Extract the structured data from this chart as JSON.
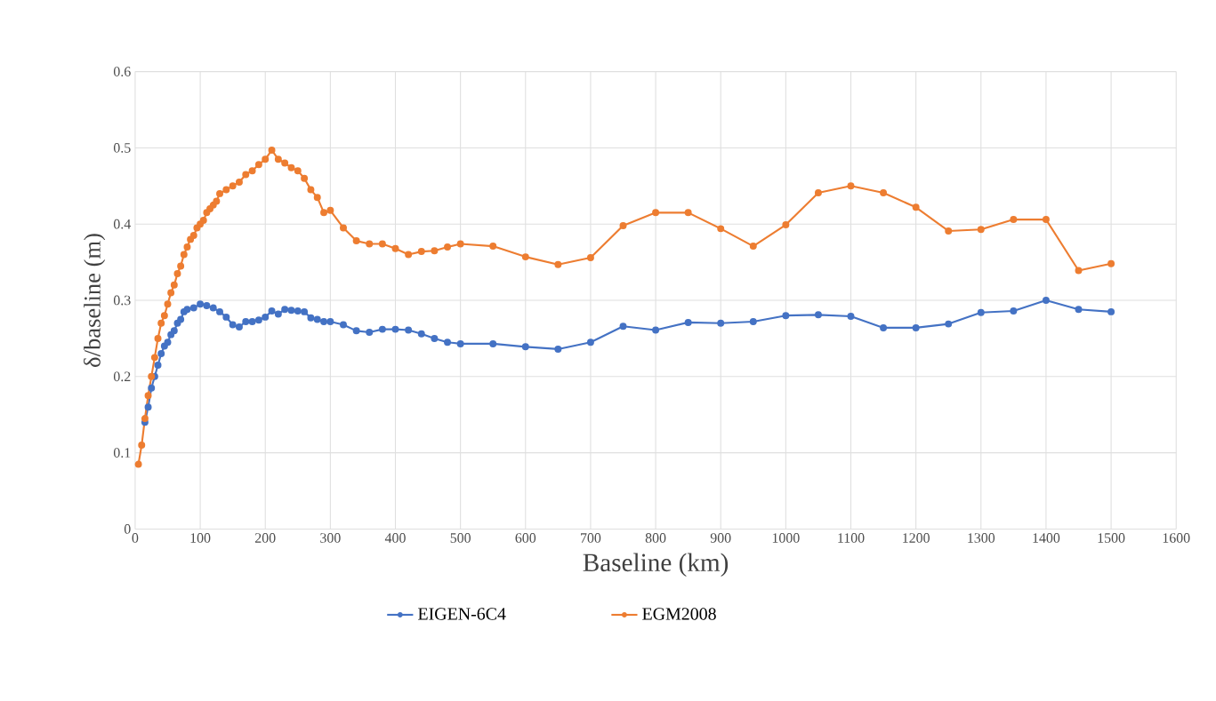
{
  "chart_data": {
    "type": "line",
    "xlabel": "Baseline (km)",
    "ylabel": "δ/baseline (m)",
    "xlim": [
      0,
      1600
    ],
    "xticks": [
      0,
      100,
      200,
      300,
      400,
      500,
      600,
      700,
      800,
      900,
      1000,
      1100,
      1200,
      1300,
      1400,
      1500,
      1600
    ],
    "ylim": [
      0,
      0.6
    ],
    "yticks": [
      0,
      0.1,
      0.2,
      0.3,
      0.4,
      0.5,
      0.6
    ],
    "grid": true,
    "legend": "bottom",
    "marker": "circle",
    "line_style": "solid",
    "x": [
      5,
      10,
      15,
      20,
      25,
      30,
      35,
      40,
      45,
      50,
      55,
      60,
      65,
      70,
      75,
      80,
      85,
      90,
      95,
      100,
      105,
      110,
      115,
      120,
      125,
      130,
      140,
      150,
      160,
      170,
      180,
      190,
      200,
      210,
      220,
      230,
      240,
      250,
      260,
      270,
      280,
      290,
      300,
      320,
      340,
      360,
      380,
      400,
      420,
      440,
      460,
      480,
      500,
      550,
      600,
      650,
      700,
      750,
      800,
      850,
      900,
      950,
      1000,
      1050,
      1100,
      1150,
      1200,
      1250,
      1300,
      1350,
      1400,
      1450,
      1500
    ],
    "series": [
      {
        "name": "EIGEN-6C4",
        "color": "#4472c4",
        "x": [
          15,
          20,
          25,
          30,
          35,
          40,
          45,
          50,
          55,
          60,
          65,
          70,
          75,
          80,
          90,
          100,
          110,
          120,
          130,
          140,
          150,
          160,
          170,
          180,
          190,
          200,
          210,
          220,
          230,
          240,
          250,
          260,
          270,
          280,
          290,
          300,
          320,
          340,
          360,
          380,
          400,
          420,
          440,
          460,
          480,
          500,
          550,
          600,
          650,
          700,
          750,
          800,
          850,
          900,
          950,
          1000,
          1050,
          1100,
          1150,
          1200,
          1250,
          1300,
          1350,
          1400,
          1450,
          1500
        ],
        "values": [
          0.14,
          0.16,
          0.185,
          0.2,
          0.215,
          0.23,
          0.24,
          0.245,
          0.255,
          0.26,
          0.27,
          0.275,
          0.285,
          0.288,
          0.29,
          0.295,
          0.293,
          0.29,
          0.285,
          0.278,
          0.268,
          0.265,
          0.272,
          0.272,
          0.274,
          0.278,
          0.286,
          0.282,
          0.288,
          0.287,
          0.286,
          0.285,
          0.277,
          0.275,
          0.272,
          0.272,
          0.268,
          0.26,
          0.258,
          0.262,
          0.262,
          0.261,
          0.256,
          0.25,
          0.245,
          0.243,
          0.243,
          0.239,
          0.236,
          0.245,
          0.266,
          0.261,
          0.271,
          0.27,
          0.272,
          0.28,
          0.281,
          0.279,
          0.264,
          0.264,
          0.269,
          0.284,
          0.286,
          0.3,
          0.288,
          0.285
        ]
      },
      {
        "name": "EGM2008",
        "color": "#ed7d31",
        "values": [
          0.085,
          0.11,
          0.145,
          0.175,
          0.2,
          0.225,
          0.25,
          0.27,
          0.28,
          0.295,
          0.31,
          0.32,
          0.335,
          0.345,
          0.36,
          0.37,
          0.38,
          0.385,
          0.395,
          0.4,
          0.405,
          0.415,
          0.42,
          0.425,
          0.43,
          0.44,
          0.445,
          0.45,
          0.455,
          0.465,
          0.47,
          0.478,
          0.485,
          0.497,
          0.485,
          0.48,
          0.474,
          0.47,
          0.46,
          0.445,
          0.435,
          0.415,
          0.418,
          0.395,
          0.378,
          0.374,
          0.374,
          0.368,
          0.36,
          0.364,
          0.365,
          0.37,
          0.374,
          0.371,
          0.357,
          0.347,
          0.356,
          0.398,
          0.415,
          0.415,
          0.394,
          0.371,
          0.399,
          0.441,
          0.45,
          0.441,
          0.422,
          0.391,
          0.393,
          0.406,
          0.406,
          0.339,
          0.348
        ]
      }
    ]
  }
}
